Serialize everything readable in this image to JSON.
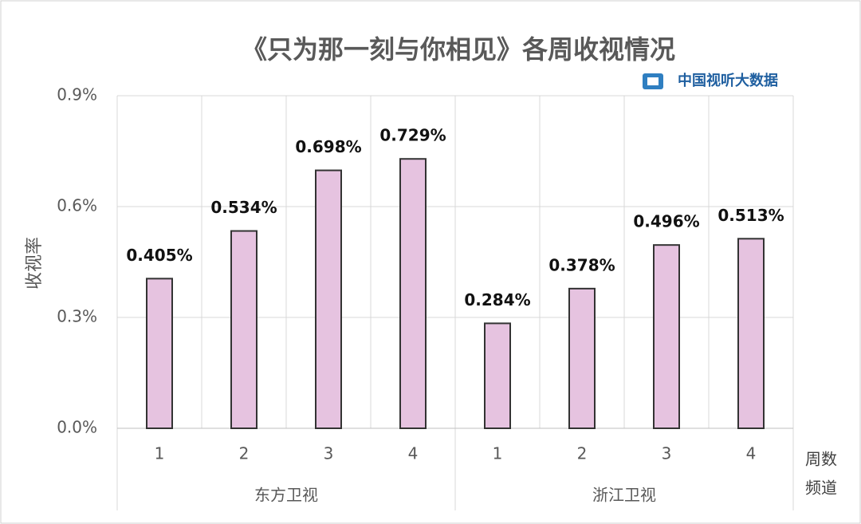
{
  "chart_data": {
    "type": "bar",
    "title": "《只为那一刻与你相见》各周收视情况",
    "source": "中国视听大数据",
    "y_label": "收视率",
    "x_label": "周数",
    "group_label": "频道",
    "groups": [
      "东方卫视",
      "浙江卫视"
    ],
    "categories": [
      "1",
      "2",
      "3",
      "4",
      "1",
      "2",
      "3",
      "4"
    ],
    "values": [
      0.405,
      0.534,
      0.698,
      0.729,
      0.284,
      0.378,
      0.496,
      0.513
    ],
    "value_labels": [
      "0.405%",
      "0.534%",
      "0.698%",
      "0.729%",
      "0.284%",
      "0.378%",
      "0.496%",
      "0.513%"
    ],
    "color": "#e6c3e0",
    "ylim": [
      0,
      0.9
    ],
    "yticks": [
      {
        "value": 0,
        "label": "0.0%"
      },
      {
        "value": 0.3,
        "label": "0.3%"
      },
      {
        "value": 0.6,
        "label": "0.6%"
      },
      {
        "value": 0.9,
        "label": "0.9%"
      }
    ],
    "grid": true
  }
}
